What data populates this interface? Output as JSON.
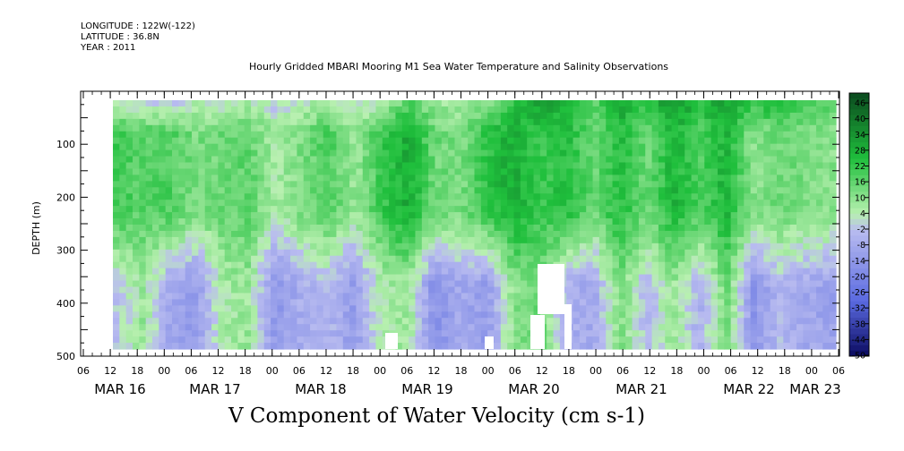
{
  "header": {
    "longitude": "LONGITUDE : 122W(-122)",
    "latitude": "LATITUDE : 36.8N",
    "year": "YEAR : 2011",
    "title": "Hourly Gridded MBARI Mooring M1 Sea Water Temperature and Salinity Observations"
  },
  "colors": {
    "positive_dark": "#0b4a1f",
    "positive_mid": "#1fbf3c",
    "positive_light": "#b8f0b0",
    "negative_light": "#b9bcf0",
    "negative_mid": "#5a6ae0",
    "negative_dark": "#0a0a60",
    "missing": "#ffffff"
  },
  "chart_data": {
    "type": "heatmap",
    "title": "V Component of Water Velocity (cm s-1)",
    "ylabel": "DEPTH (m)",
    "xlabel": "",
    "ylim": [
      500,
      0
    ],
    "y_ticks": [
      "100",
      "200",
      "300",
      "400",
      "500"
    ],
    "x_hour_ticks": [
      "06",
      "12",
      "18",
      "00",
      "06",
      "12",
      "18",
      "00",
      "06",
      "12",
      "18",
      "00",
      "06",
      "12",
      "18",
      "00",
      "06",
      "12",
      "18",
      "00",
      "06",
      "12",
      "18",
      "00",
      "06",
      "12",
      "18",
      "00",
      "06"
    ],
    "x_date_labels": [
      "MAR 16",
      "MAR 17",
      "MAR 18",
      "MAR 19",
      "MAR 20",
      "MAR 21",
      "MAR 22",
      "MAR 23"
    ],
    "data_extent": {
      "start": "MAR 16 12:00",
      "end": "MAR 23 06:00",
      "depth_top": 20,
      "depth_bottom": 485
    },
    "colorbar_labels": [
      "46",
      "40",
      "34",
      "28",
      "22",
      "16",
      "10",
      "4",
      "-2",
      "-8",
      "-14",
      "-20",
      "-26",
      "-32",
      "-38",
      "-44",
      "-50"
    ],
    "colorbar_range": [
      -50,
      46
    ],
    "profile_days": [
      {
        "day": "MAR 16 12:00",
        "surface": 2,
        "upper": 18,
        "lower": -4
      },
      {
        "day": "MAR 16 18:00",
        "surface": 0,
        "upper": 14,
        "lower": 6
      },
      {
        "day": "MAR 17 00:00",
        "surface": -2,
        "upper": 16,
        "lower": -10
      },
      {
        "day": "MAR 17 06:00",
        "surface": 2,
        "upper": 10,
        "lower": -14
      },
      {
        "day": "MAR 17 12:00",
        "surface": 0,
        "upper": 12,
        "lower": 4
      },
      {
        "day": "MAR 17 18:00",
        "surface": 4,
        "upper": 14,
        "lower": 6
      },
      {
        "day": "MAR 18 00:00",
        "surface": -2,
        "upper": 4,
        "lower": -16
      },
      {
        "day": "MAR 18 06:00",
        "surface": 2,
        "upper": 10,
        "lower": -8
      },
      {
        "day": "MAR 18 12:00",
        "surface": 6,
        "upper": 16,
        "lower": -6
      },
      {
        "day": "MAR 18 18:00",
        "surface": 0,
        "upper": 6,
        "lower": -14
      },
      {
        "day": "MAR 19 00:00",
        "surface": 2,
        "upper": 18,
        "lower": 4
      },
      {
        "day": "MAR 19 06:00",
        "surface": 16,
        "upper": 26,
        "lower": 6
      },
      {
        "day": "MAR 19 12:00",
        "surface": 6,
        "upper": 12,
        "lower": -18
      },
      {
        "day": "MAR 19 18:00",
        "surface": 4,
        "upper": 10,
        "lower": -10
      },
      {
        "day": "MAR 20 00:00",
        "surface": 8,
        "upper": 20,
        "lower": -14
      },
      {
        "day": "MAR 20 06:00",
        "surface": 20,
        "upper": 26,
        "lower": 8
      },
      {
        "day": "MAR 20 12:00",
        "surface": 30,
        "upper": 18,
        "lower": 12
      },
      {
        "day": "MAR 20 18:00",
        "surface": 24,
        "upper": 22,
        "lower": -8
      },
      {
        "day": "MAR 21 00:00",
        "surface": 14,
        "upper": 12,
        "lower": -10
      },
      {
        "day": "MAR 21 06:00",
        "surface": 26,
        "upper": 22,
        "lower": 10
      },
      {
        "day": "MAR 21 12:00",
        "surface": 20,
        "upper": 12,
        "lower": -6
      },
      {
        "day": "MAR 21 18:00",
        "surface": 30,
        "upper": 24,
        "lower": 6
      },
      {
        "day": "MAR 22 00:00",
        "surface": 22,
        "upper": 16,
        "lower": -8
      },
      {
        "day": "MAR 22 06:00",
        "surface": 28,
        "upper": 24,
        "lower": 12
      },
      {
        "day": "MAR 22 12:00",
        "surface": 20,
        "upper": 8,
        "lower": -16
      },
      {
        "day": "MAR 22 18:00",
        "surface": 24,
        "upper": 12,
        "lower": -6
      },
      {
        "day": "MAR 23 00:00",
        "surface": 16,
        "upper": 10,
        "lower": -10
      },
      {
        "day": "MAR 23 06:00",
        "surface": 14,
        "upper": 8,
        "lower": -12
      }
    ]
  }
}
